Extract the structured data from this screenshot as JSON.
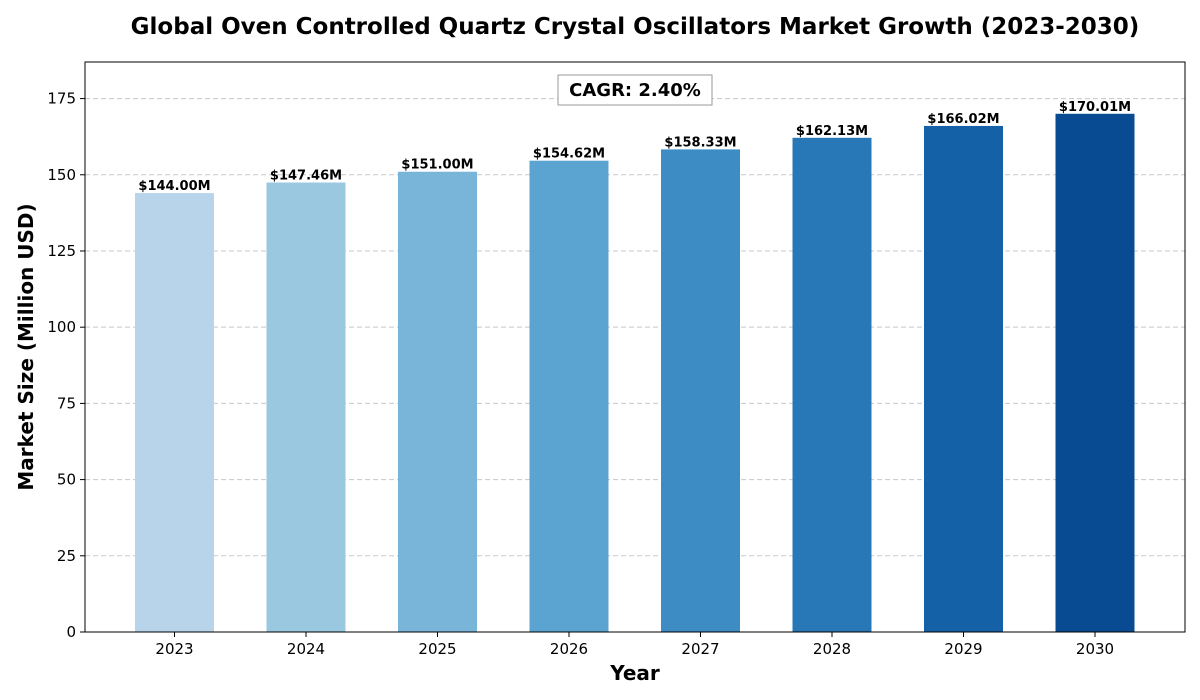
{
  "chart_data": {
    "type": "bar",
    "title": "Global Oven Controlled Quartz Crystal Oscillators Market Growth (2023-2030)",
    "xlabel": "Year",
    "ylabel": "Market Size (Million USD)",
    "categories": [
      "2023",
      "2024",
      "2025",
      "2026",
      "2027",
      "2028",
      "2029",
      "2030"
    ],
    "values": [
      144.0,
      147.46,
      151.0,
      154.62,
      158.33,
      162.13,
      166.02,
      170.01
    ],
    "data_labels": [
      "$144.00M",
      "$147.46M",
      "$151.00M",
      "$154.62M",
      "$158.33M",
      "$162.13M",
      "$166.02M",
      "$170.01M"
    ],
    "bar_colors": [
      "#b7d4ea",
      "#9ac8e0",
      "#79b5d9",
      "#5ba3d0",
      "#3d8dc4",
      "#2878b8",
      "#1461a8",
      "#084b93"
    ],
    "ylim": [
      0,
      187
    ],
    "yticks": [
      0,
      25,
      50,
      75,
      100,
      125,
      150,
      175
    ],
    "grid": true,
    "annotation": "CAGR: 2.40%"
  }
}
